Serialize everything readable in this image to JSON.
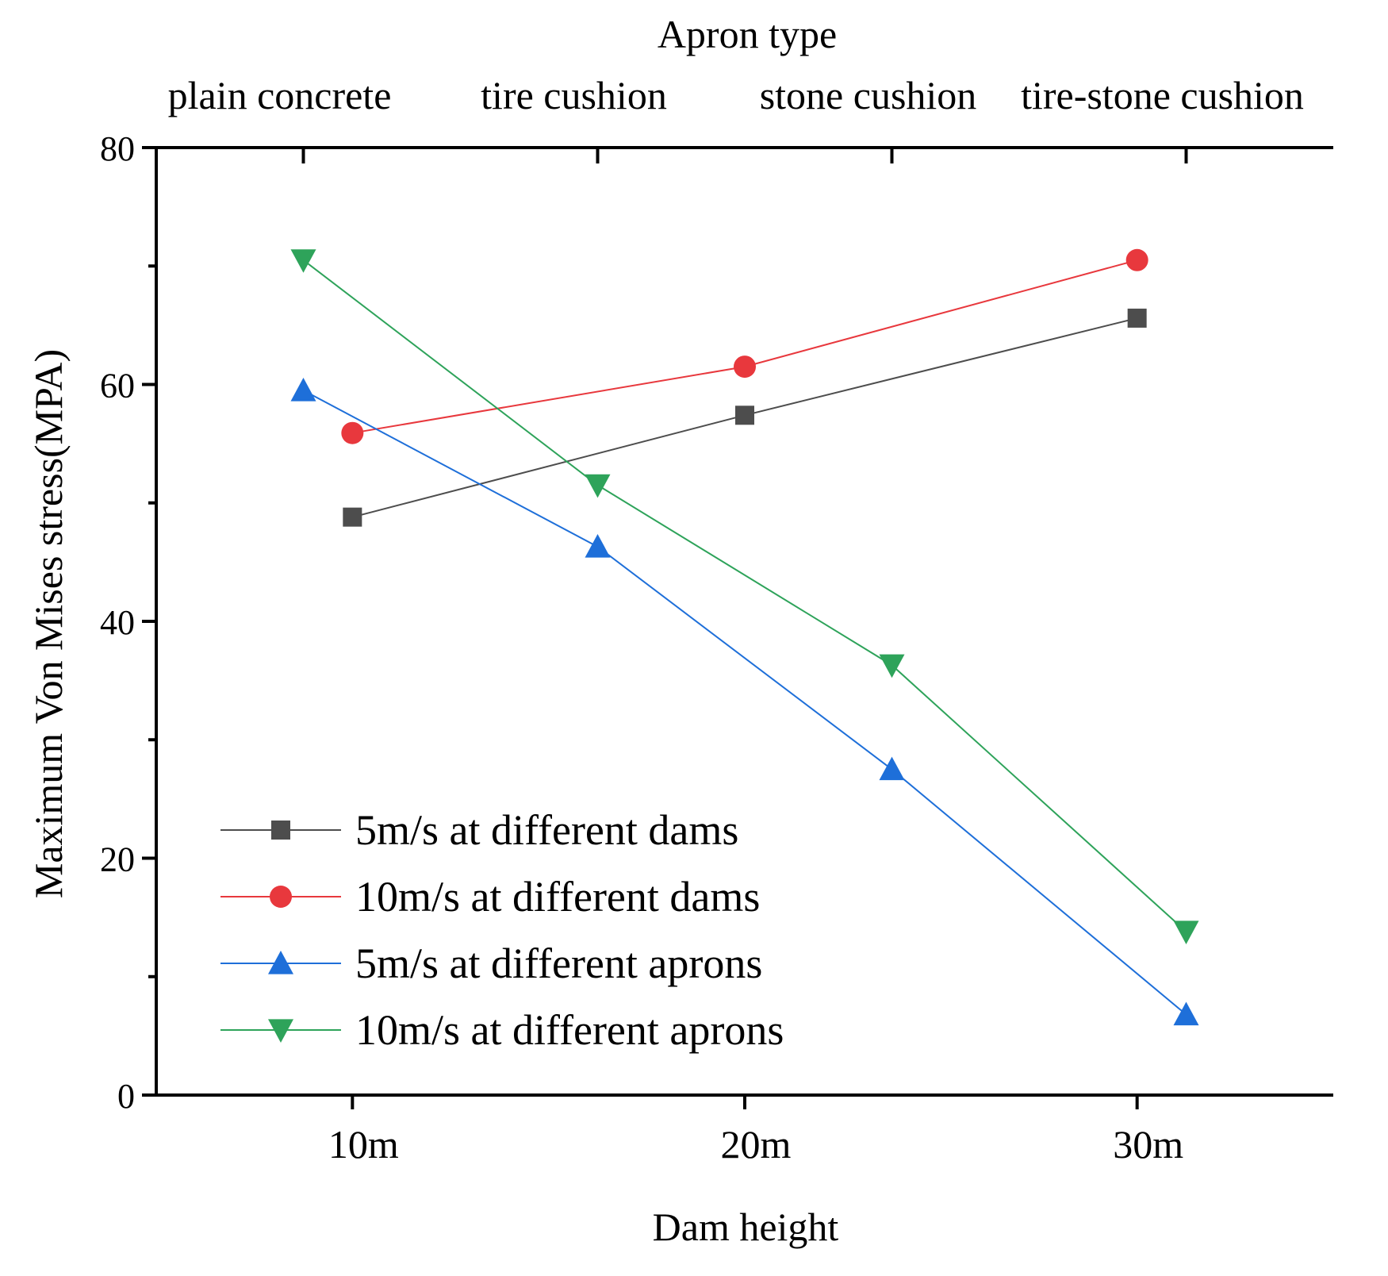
{
  "chart_data": {
    "type": "line",
    "xlabel": "Dam height",
    "ylabel": "Maximum Von Mises stress(MPA)",
    "top_axis_title": "Apron type",
    "ylim": [
      0,
      80
    ],
    "yticks": [
      0,
      20,
      40,
      60,
      80
    ],
    "bottom_axis": {
      "range": [
        5,
        35
      ],
      "ticks": [
        10,
        20,
        30
      ],
      "tick_labels": [
        "10m",
        "20m",
        "30m"
      ]
    },
    "top_axis": {
      "range": [
        0.5,
        4.5
      ],
      "categories": [
        "plain concrete",
        "tire cushion",
        "stone cushion",
        "tire-stone cushion"
      ]
    },
    "legend_position": "bottom-left",
    "grid": false,
    "series": [
      {
        "name": "5m/s at different dams",
        "axis": "bottom",
        "color": "#4d4d4d",
        "marker": "square",
        "x": [
          10,
          20,
          30
        ],
        "values": [
          48.8,
          57.4,
          65.6
        ]
      },
      {
        "name": "10m/s at different dams",
        "axis": "bottom",
        "color": "#e8383d",
        "marker": "circle",
        "x": [
          10,
          20,
          30
        ],
        "values": [
          55.9,
          61.5,
          70.5
        ]
      },
      {
        "name": "5m/s at different aprons",
        "axis": "top",
        "color": "#1e6fd9",
        "marker": "triangle-up",
        "x": [
          1,
          2,
          3,
          4
        ],
        "values": [
          59.5,
          46.3,
          27.5,
          6.8
        ]
      },
      {
        "name": "10m/s at different aprons",
        "axis": "top",
        "color": "#2ea35a",
        "marker": "triangle-down",
        "x": [
          1,
          2,
          3,
          4
        ],
        "values": [
          70.5,
          51.5,
          36.3,
          13.8
        ]
      }
    ]
  }
}
